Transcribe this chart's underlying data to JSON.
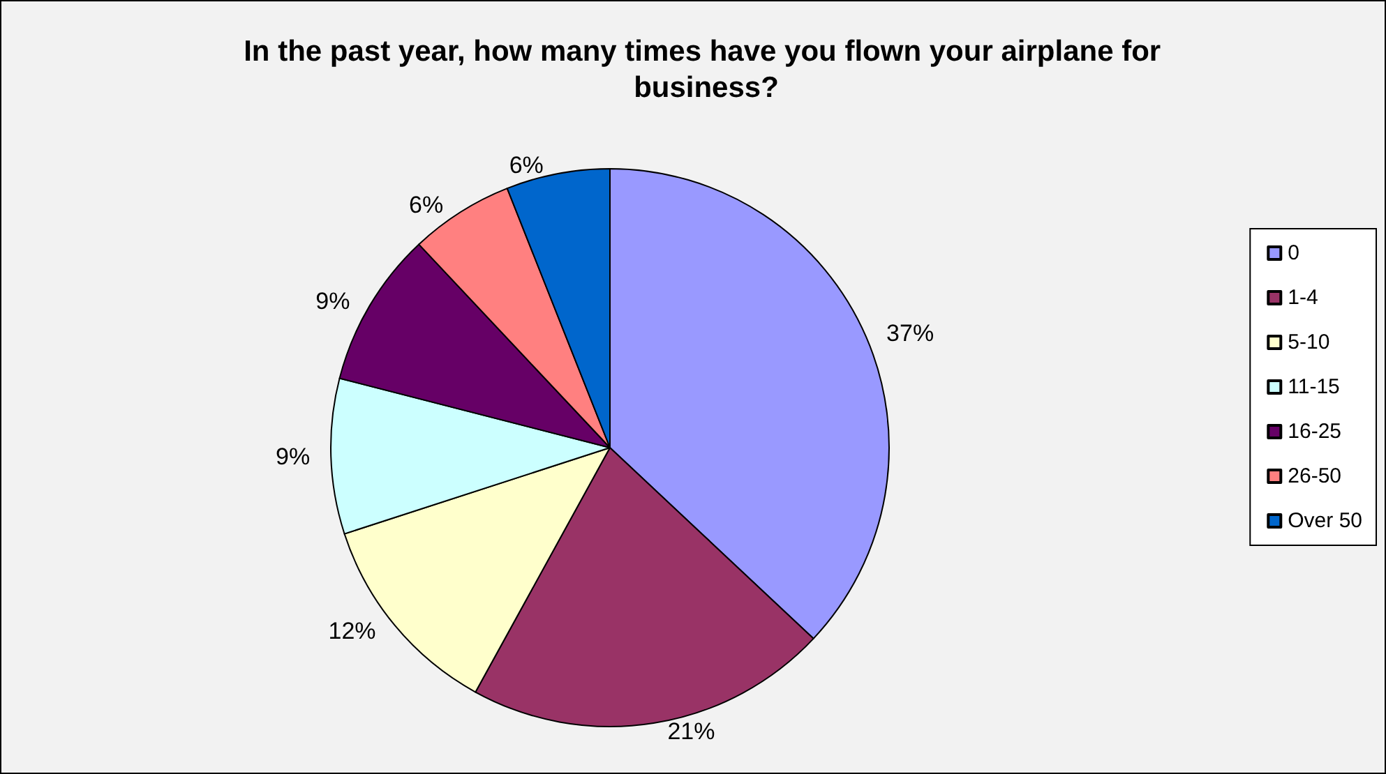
{
  "chart_data": {
    "type": "pie",
    "title": "In the past year, how many times have you flown your airplane for business?",
    "categories": [
      "0",
      "1-4",
      "5-10",
      "11-15",
      "16-25",
      "26-50",
      "Over 50"
    ],
    "values": [
      37,
      21,
      12,
      9,
      9,
      6,
      6
    ],
    "colors": [
      "#9999ff",
      "#993366",
      "#ffffcc",
      "#ccffff",
      "#660066",
      "#ff8080",
      "#0066cc"
    ],
    "value_labels": [
      "37%",
      "21%",
      "12%",
      "9%",
      "9%",
      "6%",
      "6%"
    ],
    "legend": "right"
  }
}
